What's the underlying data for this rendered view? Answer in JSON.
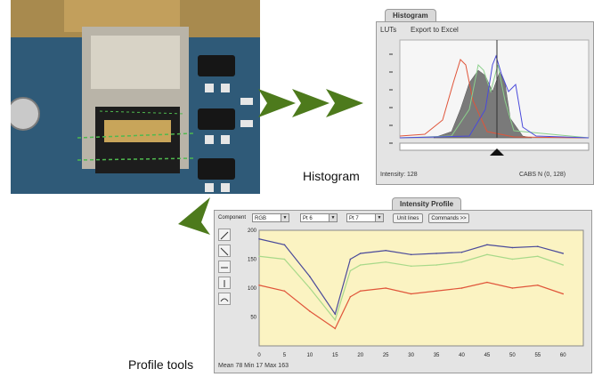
{
  "captions": {
    "histogram": "Histogram",
    "profile_tools": "Profile tools"
  },
  "histogram_window": {
    "tab_title": "Histogram",
    "menu": {
      "luts": "LUTs",
      "export": "Export to Excel"
    },
    "status": {
      "intensity": "Intensity: 128",
      "class_info": "CABS N   (0, 128)"
    },
    "slider_position": 0.6
  },
  "profile_window": {
    "tab_title": "Intensity Profile",
    "component_label": "Component",
    "component_value": "RGB",
    "dropdown2_value": "Pt 6",
    "dropdown3_value": "Pt 7",
    "unit_button": "Unit lines",
    "commands_button": "Commands >>",
    "status": "Mean 78  Min 17  Max 163",
    "colors": {
      "plot_bg": "#fbf3c2",
      "red": "#e0553a",
      "green": "#a8d98a",
      "blue": "#4a4a9a"
    }
  },
  "chart_data": {
    "type": "line",
    "x": [
      0,
      5,
      10,
      15,
      18,
      20,
      25,
      30,
      35,
      40,
      45,
      50,
      55,
      60
    ],
    "ylim": [
      0,
      200
    ],
    "xlim": [
      0,
      64
    ],
    "y_ticks": [
      "200",
      "150",
      "100",
      "50"
    ],
    "x_ticks": [
      "0",
      "5",
      "10",
      "15",
      "20",
      "25",
      "30",
      "35",
      "40",
      "45",
      "50",
      "55",
      "60"
    ],
    "grid": false,
    "series": [
      {
        "color": "#4a4a9a",
        "values": [
          185,
          175,
          120,
          55,
          150,
          160,
          165,
          158,
          160,
          162,
          175,
          170,
          172,
          160
        ]
      },
      {
        "color": "#a8d98a",
        "values": [
          155,
          150,
          100,
          45,
          130,
          140,
          145,
          138,
          140,
          145,
          158,
          150,
          155,
          140
        ]
      },
      {
        "color": "#e0553a",
        "values": [
          105,
          95,
          60,
          30,
          85,
          95,
          100,
          90,
          95,
          100,
          110,
          100,
          105,
          90
        ]
      }
    ]
  }
}
